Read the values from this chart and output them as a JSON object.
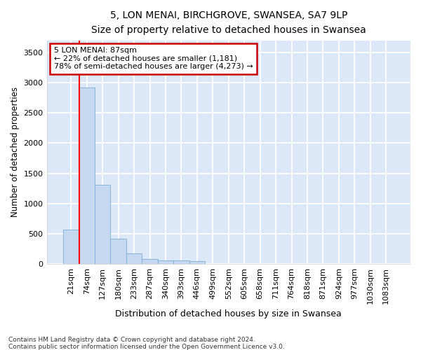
{
  "title": "5, LON MENAI, BIRCHGROVE, SWANSEA, SA7 9LP",
  "subtitle": "Size of property relative to detached houses in Swansea",
  "xlabel": "Distribution of detached houses by size in Swansea",
  "ylabel": "Number of detached properties",
  "bar_color": "#c5d8f0",
  "bar_edge_color": "#7aadd4",
  "background_color": "#dce8f8",
  "grid_color": "#ffffff",
  "fig_background": "#ffffff",
  "categories": [
    "21sqm",
    "74sqm",
    "127sqm",
    "180sqm",
    "233sqm",
    "287sqm",
    "340sqm",
    "393sqm",
    "446sqm",
    "499sqm",
    "552sqm",
    "605sqm",
    "658sqm",
    "711sqm",
    "764sqm",
    "818sqm",
    "871sqm",
    "924sqm",
    "977sqm",
    "1030sqm",
    "1083sqm"
  ],
  "values": [
    570,
    2920,
    1310,
    415,
    170,
    80,
    60,
    55,
    50,
    0,
    0,
    0,
    0,
    0,
    0,
    0,
    0,
    0,
    0,
    0,
    0
  ],
  "ylim": [
    0,
    3700
  ],
  "yticks": [
    0,
    500,
    1000,
    1500,
    2000,
    2500,
    3000,
    3500
  ],
  "red_line_x": 0.5,
  "annotation_text": "5 LON MENAI: 87sqm\n← 22% of detached houses are smaller (1,181)\n78% of semi-detached houses are larger (4,273) →",
  "annotation_box_color": "#ffffff",
  "annotation_box_edge_color": "#cc0000",
  "footnote1": "Contains HM Land Registry data © Crown copyright and database right 2024.",
  "footnote2": "Contains public sector information licensed under the Open Government Licence v3.0."
}
